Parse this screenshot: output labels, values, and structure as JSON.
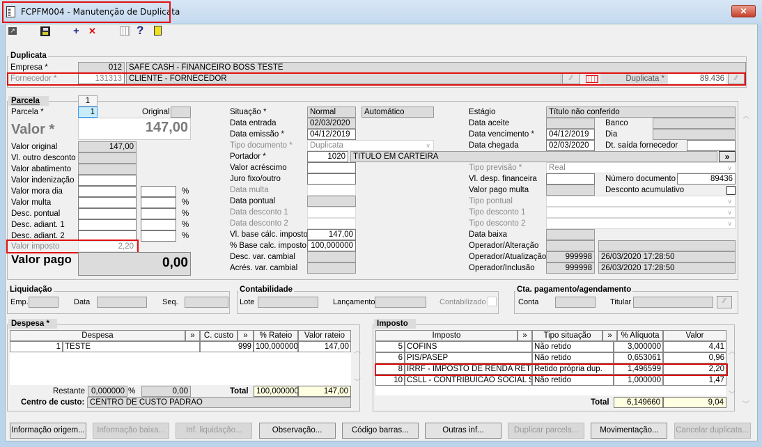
{
  "window": {
    "title": "FCPFM004 - Manutenção de Duplicata",
    "close": "✕"
  },
  "toolbar": {
    "add": "+",
    "delete": "✕",
    "help": "?"
  },
  "duplicata": {
    "legend": "Duplicata",
    "empresa_label": "Empresa *",
    "empresa_code": "012",
    "empresa_name": "SAFE CASH - FINANCEIRO BOSS TESTE",
    "fornecedor_label": "Fornecedor *",
    "fornecedor_code": "131313",
    "fornecedor_name": "CLIENTE - FORNECEDOR",
    "duplicata_label": "Duplicata *",
    "duplicata_value": "89.436",
    "lookup": "⁄⁄"
  },
  "parcela": {
    "tab": "Parcela",
    "tab_number": "1",
    "parcela_label": "Parcela *",
    "parcela_value": "1",
    "original_label": "Original",
    "valor_label": "Valor *",
    "valor_value": "147,00",
    "left_rows": [
      {
        "label": "Valor original",
        "value": "147,00",
        "pct": false
      },
      {
        "label": "Vl. outro desconto",
        "value": "",
        "pct": false
      },
      {
        "label": "Valor abatimento",
        "value": "",
        "pct": false
      },
      {
        "label": "Valor indenização",
        "value": "",
        "pct": false
      },
      {
        "label": "Valor mora dia",
        "value": "",
        "pct": true
      },
      {
        "label": "Valor multa",
        "value": "",
        "pct": true
      },
      {
        "label": "Desc. pontual",
        "value": "",
        "pct": true
      },
      {
        "label": "Desc. adiant. 1",
        "value": "",
        "pct": true
      },
      {
        "label": "Desc. adiant. 2",
        "value": "",
        "pct": true
      }
    ],
    "pct_sign": "%",
    "valor_imposto_label": "Valor imposto",
    "valor_imposto_value": "2,20",
    "valor_pago_label": "Valor pago",
    "valor_pago_value": "0,00",
    "mid": {
      "situacao_label": "Situação *",
      "situacao": "Normal",
      "situacao2": "Automático",
      "data_entrada_label": "Data entrada",
      "data_entrada": "02/03/2020",
      "data_emissao_label": "Data emissão *",
      "data_emissao": "04/12/2019",
      "tipo_doc_label": "Tipo documento *",
      "tipo_doc": "Duplicata",
      "portador_label": "Portador *",
      "portador_code": "1020",
      "portador_name": "TITULO EM CARTEIRA",
      "portador_btn": "»",
      "valor_acrescimo_label": "Valor acréscimo",
      "juro_label": "Juro fixo/outro",
      "data_multa_label": "Data multa",
      "data_pontual_label": "Data pontual",
      "data_desc1_label": "Data desconto 1",
      "data_desc2_label": "Data desconto 2",
      "vl_base_label": "Vl. base cálc. imposto",
      "vl_base": "147,00",
      "pct_base_label": "% Base calc. imposto",
      "pct_base": "100,000000",
      "desc_var_label": "Desc. var. cambial",
      "acres_var_label": "Acrés. var. cambial"
    },
    "right": {
      "estagio_label": "Estágio",
      "estagio": "Título não conferido",
      "data_aceite_label": "Data aceite",
      "banco_label": "Banco",
      "data_venc_label": "Data vencimento *",
      "data_venc": "04/12/2019",
      "dia_label": "Dia",
      "data_chegada_label": "Data chegada",
      "data_chegada": "02/03/2020",
      "dt_saida_label": "Dt. saída fornecedor",
      "tipo_prev_label": "Tipo previsão *",
      "tipo_prev": "Real",
      "vl_desp_label": "Vl. desp. financeira",
      "num_doc_label": "Número documento",
      "num_doc": "89436",
      "vl_pago_multa_label": "Valor pago multa",
      "desc_acum_label": "Desconto acumulativo",
      "tipo_pontual_label": "Tipo pontual",
      "tipo_desc1_label": "Tipo desconto 1",
      "tipo_desc2_label": "Tipo desconto 2",
      "data_baixa_label": "Data baixa",
      "op_alt_label": "Operador/Alteração",
      "op_atu_label": "Operador/Atualização",
      "op_atu_code": "999998",
      "op_atu_date": "26/03/2020 17:28:50",
      "op_inc_label": "Operador/Inclusão",
      "op_inc_code": "999998",
      "op_inc_date": "26/03/2020 17:28:50"
    }
  },
  "liquidacao": {
    "legend": "Liquidação",
    "emp": "Emp.",
    "data": "Data",
    "seq": "Seq."
  },
  "contabilidade": {
    "legend": "Contabilidade",
    "lote": "Lote",
    "lancamento": "Lançamento",
    "contabilizado": "Contabilizado"
  },
  "cta": {
    "legend": "Cta. pagamento/agendamento",
    "conta": "Conta",
    "titular": "Titular"
  },
  "despesa": {
    "legend": "Despesa *",
    "headers": [
      "Despesa",
      "»",
      "C. custo",
      "»",
      "% Rateio",
      "Valor rateio"
    ],
    "rows": [
      {
        "code": "1",
        "name": "TESTE",
        "ccusto": "999",
        "rateio": "100,000000",
        "valor": "147,00"
      }
    ],
    "restante_label": "Restante",
    "restante_pct": "0,000000",
    "restante_valor": "0,00",
    "total_label": "Total",
    "total_pct": "100,000000",
    "total_valor": "147,00",
    "centro_label": "Centro de custo:",
    "centro_value": "CENTRO DE CUSTO PADRAO"
  },
  "imposto": {
    "legend": "Imposto",
    "headers": [
      "Imposto",
      "»",
      "Tipo situação",
      "»",
      "% Alíquota",
      "Valor"
    ],
    "rows": [
      {
        "code": "5",
        "name": "COFINS",
        "tipo": "Não retido",
        "aliquota": "3,000000",
        "valor": "4,41"
      },
      {
        "code": "6",
        "name": "PIS/PASEP",
        "tipo": "Não retido",
        "aliquota": "0,653061",
        "valor": "0,96"
      },
      {
        "code": "8",
        "name": "IRRF - IMPOSTO DE RENDA RETIDO N",
        "tipo": "Retido própria dup.",
        "aliquota": "1,496599",
        "valor": "2,20"
      },
      {
        "code": "10",
        "name": "CSLL - CONTRIBUICAO SOCIAL SOB",
        "tipo": "Não retido",
        "aliquota": "1,000000",
        "valor": "1,47"
      }
    ],
    "total_label": "Total",
    "total_aliquota": "6,149660",
    "total_valor": "9,04"
  },
  "buttons": [
    {
      "label": "Informação origem...",
      "enabled": true
    },
    {
      "label": "Informação baixa...",
      "enabled": false
    },
    {
      "label": "Inf. liquidação...",
      "enabled": false
    },
    {
      "label": "Observação...",
      "enabled": true
    },
    {
      "label": "Código barras...",
      "enabled": true
    },
    {
      "label": "Outras inf...",
      "enabled": true
    },
    {
      "label": "Duplicar parcela...",
      "enabled": false
    },
    {
      "label": "Movimentação...",
      "enabled": true
    },
    {
      "label": "Cancelar duplicata...",
      "enabled": false
    }
  ],
  "colors": {
    "highlight": "#e01010",
    "readonly": "#dcdcdc",
    "total": "#fefee0",
    "selected": "#c8ecfa"
  }
}
